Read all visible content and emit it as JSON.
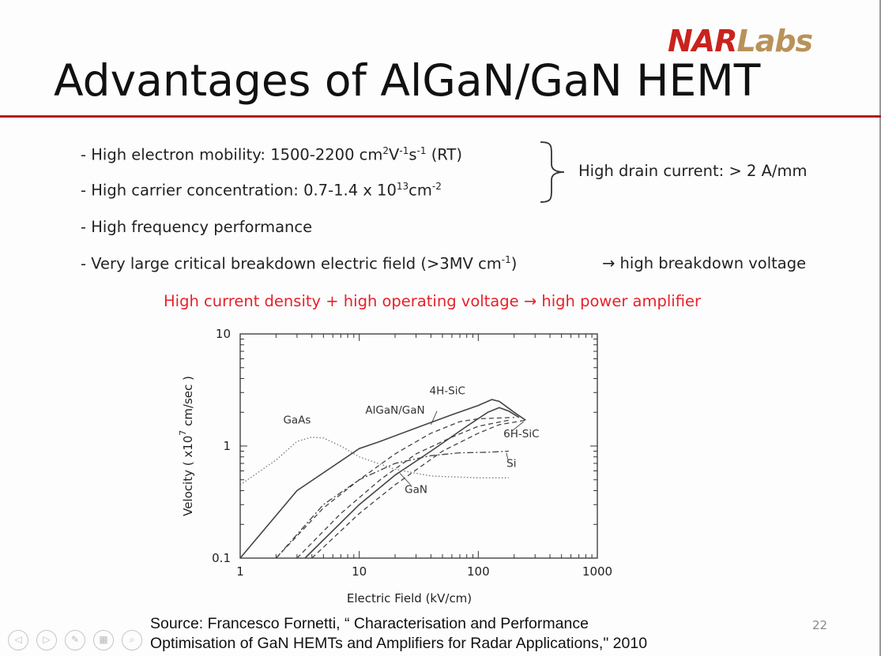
{
  "logo": {
    "part1": "NAR",
    "part2": "Labs"
  },
  "slide": {
    "title": "Advantages of AlGaN/GaN HEMT",
    "bullets": [
      {
        "pre": "- High electron mobility: 1500-2200 cm",
        "sup1": "2",
        "mid1": "V",
        "sup2": "-1",
        "mid2": "s",
        "sup3": "-1",
        "post": " (RT)"
      },
      {
        "pre": "- High carrier concentration: 0.7-1.4 x 10",
        "sup1": "13",
        "mid1": "cm",
        "sup2": "-2"
      },
      {
        "text": "- High frequency performance"
      },
      {
        "pre": "- Very large critical breakdown electric field (>3MV cm",
        "sup1": "-1",
        "post": ")"
      }
    ],
    "brace_note": "High drain current: > 2 A/mm",
    "arrow_note": "→ high breakdown voltage",
    "highlight": "High current density + high operating voltage → high power amplifier",
    "source_line1": "Source: Francesco Fornetti, “ Characterisation and Performance",
    "source_line2": "Optimisation of GaN HEMTs and Amplifiers for Radar Applications,\" 2010",
    "page_number": "22"
  },
  "chart_data": {
    "type": "line",
    "xlabel": "Electric Field (kV/cm)",
    "ylabel_pre": "Velocity ( x10",
    "ylabel_sup": "7",
    "ylabel_post": " cm/sec )",
    "x_scale": "log",
    "y_scale": "log",
    "xlim": [
      1,
      1000
    ],
    "ylim": [
      0.1,
      10
    ],
    "x_ticks": [
      "1",
      "10",
      "100",
      "1000"
    ],
    "y_ticks": [
      "0.1",
      "1",
      "10"
    ],
    "series": [
      {
        "name": "AlGaN/GaN",
        "style": "solid",
        "points": [
          [
            1,
            0.1
          ],
          [
            3,
            0.4
          ],
          [
            10,
            0.95
          ],
          [
            15,
            1.1
          ],
          [
            30,
            1.45
          ],
          [
            60,
            1.9
          ],
          [
            100,
            2.3
          ],
          [
            130,
            2.6
          ],
          [
            150,
            2.5
          ],
          [
            200,
            2.0
          ],
          [
            250,
            1.7
          ]
        ]
      },
      {
        "name": "GaN",
        "style": "solid",
        "points": [
          [
            3.5,
            0.1
          ],
          [
            10,
            0.3
          ],
          [
            20,
            0.55
          ],
          [
            40,
            0.9
          ],
          [
            80,
            1.5
          ],
          [
            120,
            2.0
          ],
          [
            150,
            2.2
          ],
          [
            180,
            2.05
          ],
          [
            220,
            1.8
          ]
        ]
      },
      {
        "name": "4H-SiC",
        "style": "dashed",
        "points": [
          [
            2,
            0.1
          ],
          [
            5,
            0.28
          ],
          [
            10,
            0.5
          ],
          [
            20,
            0.85
          ],
          [
            40,
            1.3
          ],
          [
            70,
            1.65
          ],
          [
            100,
            1.75
          ],
          [
            200,
            1.8
          ]
        ]
      },
      {
        "name": "6H-SiC",
        "style": "dashed",
        "points": [
          [
            4,
            0.1
          ],
          [
            10,
            0.25
          ],
          [
            20,
            0.45
          ],
          [
            50,
            0.9
          ],
          [
            100,
            1.3
          ],
          [
            150,
            1.55
          ],
          [
            250,
            1.7
          ]
        ]
      },
      {
        "name": "",
        "style": "dashed",
        "points": [
          [
            3,
            0.1
          ],
          [
            7,
            0.25
          ],
          [
            15,
            0.5
          ],
          [
            30,
            0.85
          ],
          [
            60,
            1.2
          ],
          [
            100,
            1.5
          ],
          [
            180,
            1.7
          ]
        ]
      },
      {
        "name": "Si",
        "style": "dashdot",
        "points": [
          [
            2,
            0.1
          ],
          [
            5,
            0.3
          ],
          [
            10,
            0.5
          ],
          [
            20,
            0.7
          ],
          [
            40,
            0.82
          ],
          [
            70,
            0.87
          ],
          [
            120,
            0.88
          ],
          [
            180,
            0.9
          ]
        ]
      },
      {
        "name": "GaAs",
        "style": "dotted",
        "points": [
          [
            1,
            0.45
          ],
          [
            2,
            0.75
          ],
          [
            3,
            1.1
          ],
          [
            4,
            1.2
          ],
          [
            5,
            1.18
          ],
          [
            7,
            1.0
          ],
          [
            10,
            0.8
          ],
          [
            20,
            0.62
          ],
          [
            40,
            0.54
          ],
          [
            100,
            0.52
          ],
          [
            180,
            0.52
          ]
        ]
      }
    ]
  }
}
